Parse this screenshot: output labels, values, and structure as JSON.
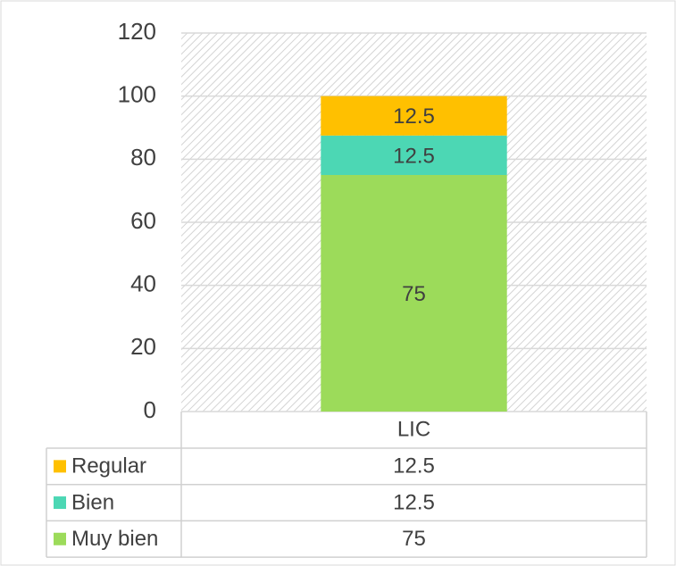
{
  "chart_data": {
    "type": "bar",
    "stacked": true,
    "categories": [
      "LIC"
    ],
    "series": [
      {
        "name": "Muy bien",
        "color": "#9cdb5a",
        "values": [
          75
        ]
      },
      {
        "name": "Bien",
        "color": "#4cd7b4",
        "values": [
          12.5
        ]
      },
      {
        "name": "Regular",
        "color": "#ffc000",
        "values": [
          12.5
        ]
      }
    ],
    "ylim": [
      0,
      120
    ],
    "yticks": [
      0,
      20,
      40,
      60,
      80,
      100,
      120
    ],
    "grid": true,
    "data_table": true
  }
}
